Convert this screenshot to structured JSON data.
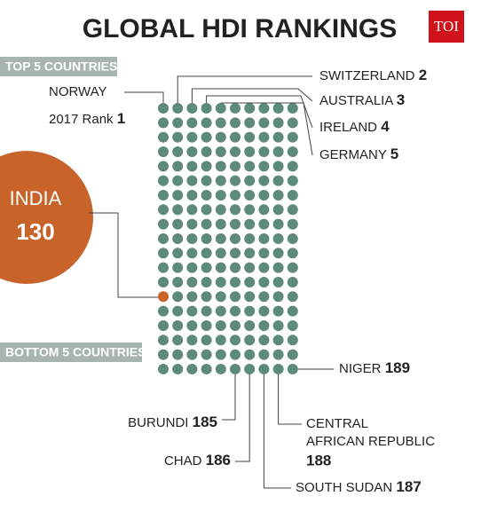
{
  "header": {
    "title": "GLOBAL HDI RANKINGS",
    "logo": "TOI"
  },
  "top_section": {
    "label": "TOP 5 COUNTRIES",
    "rank_label": "2017 Rank",
    "countries": [
      {
        "name": "NORWAY",
        "rank": 1
      },
      {
        "name": "SWITZERLAND",
        "rank": 2
      },
      {
        "name": "AUSTRALIA",
        "rank": 3
      },
      {
        "name": "IRELAND",
        "rank": 4
      },
      {
        "name": "GERMANY",
        "rank": 5
      }
    ]
  },
  "highlight": {
    "name": "INDIA",
    "rank": 130
  },
  "bottom_section": {
    "label": "BOTTOM 5 COUNTRIES",
    "countries": [
      {
        "name": "BURUNDI",
        "rank": 185
      },
      {
        "name": "CHAD",
        "rank": 186
      },
      {
        "name": "SOUTH SUDAN",
        "rank": 187
      },
      {
        "name_lines": [
          "CENTRAL",
          "AFRICAN REPUBLIC"
        ],
        "rank": 188
      },
      {
        "name": "NIGER",
        "rank": 189
      }
    ]
  }
}
